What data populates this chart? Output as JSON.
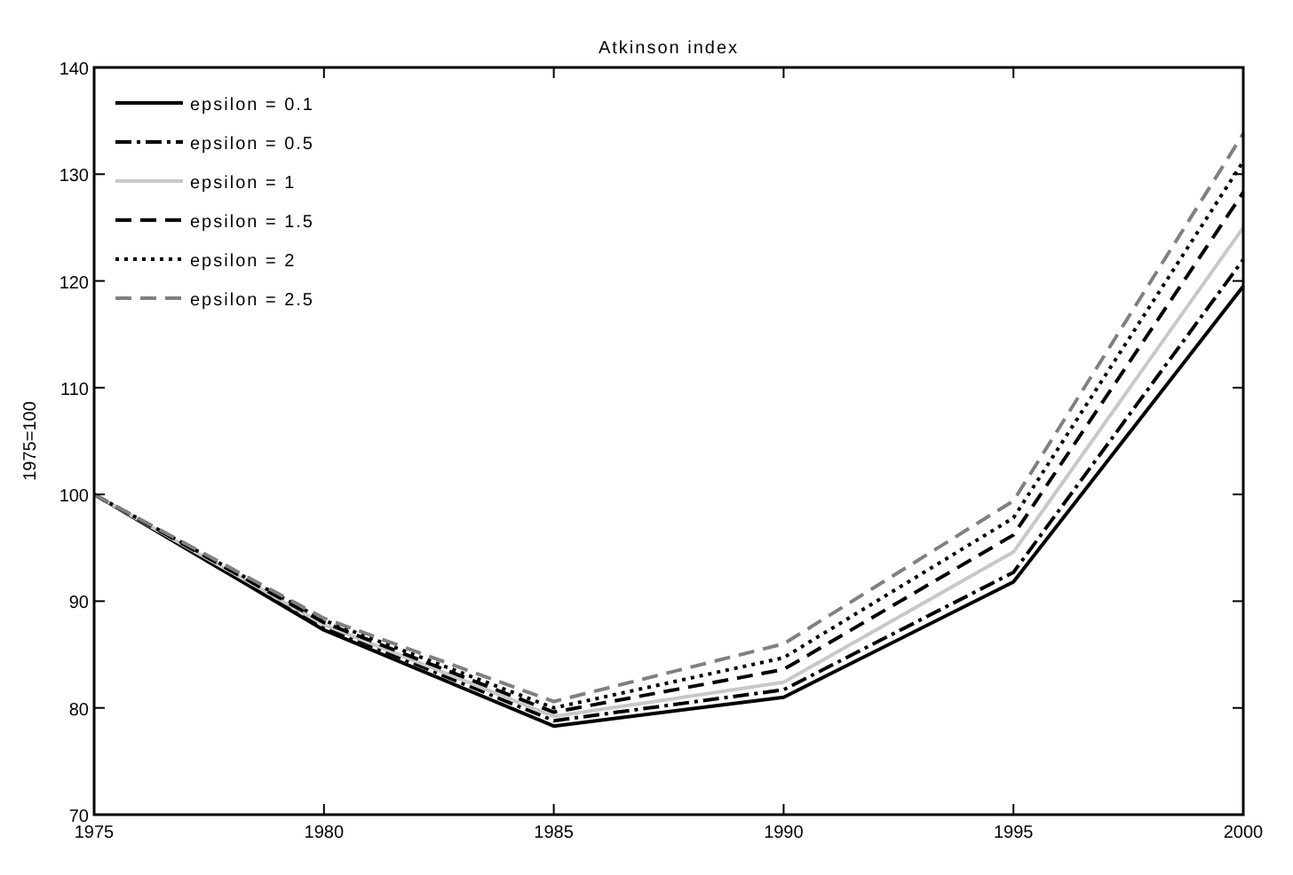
{
  "chart_data": {
    "type": "line",
    "title": "Atkinson index",
    "ylabel": "1975=100",
    "x": [
      1975,
      1980,
      1985,
      1990,
      1995,
      2000
    ],
    "xlim": [
      1975,
      2000
    ],
    "xticks": [
      1975,
      1980,
      1985,
      1990,
      1995,
      2000
    ],
    "ylim": [
      70,
      140
    ],
    "yticks": [
      70,
      80,
      90,
      100,
      110,
      120,
      130,
      140
    ],
    "grid": false,
    "legend": "top left",
    "marker": "none",
    "series": [
      {
        "name": "epsilon = 0.1",
        "color": "#000000",
        "line_style": "solid",
        "values": [
          100,
          87.3,
          78.3,
          81.0,
          91.8,
          119.5
        ]
      },
      {
        "name": "epsilon = 0.5",
        "color": "#000000",
        "line_style": "dashdot",
        "values": [
          100,
          87.6,
          78.8,
          81.7,
          92.7,
          122
        ]
      },
      {
        "name": "epsilon = 1",
        "color": "#c8c8c8",
        "line_style": "solid",
        "values": [
          100,
          87.8,
          79.2,
          82.4,
          94.6,
          125
        ]
      },
      {
        "name": "epsilon = 1.5",
        "color": "#000000",
        "line_style": "dashed",
        "values": [
          100,
          88.0,
          79.6,
          83.6,
          96.2,
          128.3
        ]
      },
      {
        "name": "epsilon = 2",
        "color": "#000000",
        "line_style": "dotted",
        "values": [
          100,
          88.2,
          80.0,
          84.7,
          97.8,
          131.2
        ]
      },
      {
        "name": "epsilon = 2.5",
        "color": "#808080",
        "line_style": "dashed",
        "values": [
          100,
          88.4,
          80.6,
          86.0,
          99.4,
          133.8
        ]
      }
    ]
  }
}
